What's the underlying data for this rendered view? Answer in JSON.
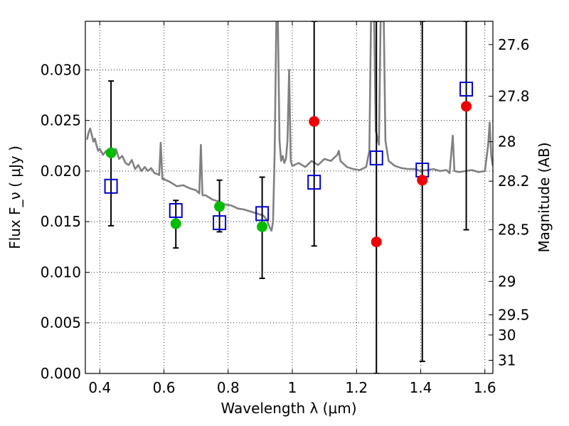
{
  "chart_data": {
    "type": "scatter",
    "title": "",
    "xlabel": "Wavelength  λ (μm)",
    "ylabel": "Flux  F_ν  ( μJy )",
    "y2label": "Magnitude (AB)",
    "xlim": [
      0.355,
      1.625
    ],
    "ylim": [
      0.0,
      0.0348
    ],
    "grid": true,
    "grid_style": "dotted",
    "x_ticks": [
      0.4,
      0.6,
      0.8,
      1.0,
      1.2,
      1.4,
      1.6
    ],
    "x_tick_labels": [
      "0.4",
      "0.6",
      "0.8",
      "1",
      "1.2",
      "1.4",
      "1.6"
    ],
    "y_ticks": [
      0.0,
      0.005,
      0.01,
      0.015,
      0.02,
      0.025,
      0.03
    ],
    "y_tick_labels": [
      "0.000",
      "0.005",
      "0.010",
      "0.015",
      "0.020",
      "0.025",
      "0.030"
    ],
    "y2_ticks": [
      {
        "label": "27.6",
        "flux": 0.0325
      },
      {
        "label": "27.8",
        "flux": 0.0274
      },
      {
        "label": "28",
        "flux": 0.0229
      },
      {
        "label": "28.2",
        "flux": 0.019
      },
      {
        "label": "28.5",
        "flux": 0.0142
      },
      {
        "label": "29",
        "flux": 0.0091
      },
      {
        "label": "29.5",
        "flux": 0.0058
      },
      {
        "label": "30",
        "flux": 0.0038
      },
      {
        "label": "31",
        "flux": 0.0013
      }
    ],
    "colors": {
      "spectrum": "#808080",
      "model": "#0000cc",
      "green": "#00bb00",
      "red": "#ee0000",
      "errorbar": "#000000"
    },
    "spectrum": [
      [
        0.36,
        0.0231
      ],
      [
        0.365,
        0.0238
      ],
      [
        0.37,
        0.0242
      ],
      [
        0.375,
        0.0236
      ],
      [
        0.38,
        0.0229
      ],
      [
        0.385,
        0.0232
      ],
      [
        0.39,
        0.0225
      ],
      [
        0.395,
        0.022
      ],
      [
        0.4,
        0.0222
      ],
      [
        0.41,
        0.0216
      ],
      [
        0.42,
        0.022
      ],
      [
        0.43,
        0.0214
      ],
      [
        0.44,
        0.0218
      ],
      [
        0.45,
        0.0222
      ],
      [
        0.46,
        0.0212
      ],
      [
        0.47,
        0.0215
      ],
      [
        0.48,
        0.0208
      ],
      [
        0.49,
        0.0206
      ],
      [
        0.5,
        0.0211
      ],
      [
        0.51,
        0.0202
      ],
      [
        0.52,
        0.0206
      ],
      [
        0.53,
        0.02
      ],
      [
        0.54,
        0.0204
      ],
      [
        0.55,
        0.02
      ],
      [
        0.56,
        0.0203
      ],
      [
        0.57,
        0.0198
      ],
      [
        0.58,
        0.0197
      ],
      [
        0.585,
        0.0196
      ],
      [
        0.59,
        0.0228
      ],
      [
        0.595,
        0.0192
      ],
      [
        0.6,
        0.0192
      ],
      [
        0.62,
        0.0189
      ],
      [
        0.64,
        0.0185
      ],
      [
        0.66,
        0.0186
      ],
      [
        0.68,
        0.0183
      ],
      [
        0.7,
        0.0181
      ],
      [
        0.71,
        0.0178
      ],
      [
        0.715,
        0.0226
      ],
      [
        0.72,
        0.0176
      ],
      [
        0.73,
        0.0176
      ],
      [
        0.75,
        0.0172
      ],
      [
        0.77,
        0.017
      ],
      [
        0.79,
        0.0167
      ],
      [
        0.81,
        0.0166
      ],
      [
        0.83,
        0.0163
      ],
      [
        0.85,
        0.0162
      ],
      [
        0.87,
        0.016
      ],
      [
        0.89,
        0.0158
      ],
      [
        0.91,
        0.0156
      ],
      [
        0.92,
        0.0152
      ],
      [
        0.93,
        0.0144
      ],
      [
        0.935,
        0.0141
      ],
      [
        0.94,
        0.015
      ],
      [
        0.945,
        0.022
      ],
      [
        0.95,
        0.0348
      ],
      [
        0.955,
        0.0348
      ],
      [
        0.96,
        0.023
      ],
      [
        0.965,
        0.021
      ],
      [
        0.97,
        0.0215
      ],
      [
        0.975,
        0.0208
      ],
      [
        0.98,
        0.0212
      ],
      [
        0.985,
        0.023
      ],
      [
        0.99,
        0.03
      ],
      [
        0.995,
        0.021
      ],
      [
        1.0,
        0.0205
      ],
      [
        1.02,
        0.0208
      ],
      [
        1.04,
        0.0204
      ],
      [
        1.06,
        0.021
      ],
      [
        1.08,
        0.0206
      ],
      [
        1.1,
        0.0212
      ],
      [
        1.12,
        0.021
      ],
      [
        1.14,
        0.0216
      ],
      [
        1.145,
        0.022
      ],
      [
        1.15,
        0.021
      ],
      [
        1.17,
        0.0204
      ],
      [
        1.19,
        0.0202
      ],
      [
        1.21,
        0.0201
      ],
      [
        1.23,
        0.0204
      ],
      [
        1.24,
        0.022
      ],
      [
        1.245,
        0.0348
      ],
      [
        1.255,
        0.0348
      ],
      [
        1.26,
        0.024
      ],
      [
        1.27,
        0.0226
      ],
      [
        1.275,
        0.0348
      ],
      [
        1.285,
        0.0348
      ],
      [
        1.29,
        0.023
      ],
      [
        1.3,
        0.021
      ],
      [
        1.32,
        0.0205
      ],
      [
        1.34,
        0.0203
      ],
      [
        1.36,
        0.0202
      ],
      [
        1.38,
        0.0202
      ],
      [
        1.4,
        0.02
      ],
      [
        1.42,
        0.0201
      ],
      [
        1.44,
        0.0202
      ],
      [
        1.46,
        0.02
      ],
      [
        1.48,
        0.0201
      ],
      [
        1.49,
        0.0198
      ],
      [
        1.5,
        0.0235
      ],
      [
        1.505,
        0.02
      ],
      [
        1.52,
        0.0199
      ],
      [
        1.54,
        0.02
      ],
      [
        1.56,
        0.0201
      ],
      [
        1.58,
        0.0199
      ],
      [
        1.6,
        0.02
      ],
      [
        1.61,
        0.0225
      ],
      [
        1.615,
        0.0248
      ],
      [
        1.62,
        0.0215
      ],
      [
        1.625,
        0.0205
      ]
    ],
    "series": [
      {
        "marker": "open-square",
        "color": "#0000cc",
        "points": [
          {
            "x": 0.435,
            "y": 0.0185
          },
          {
            "x": 0.637,
            "y": 0.0161
          },
          {
            "x": 0.773,
            "y": 0.0149
          },
          {
            "x": 0.906,
            "y": 0.0158
          },
          {
            "x": 1.068,
            "y": 0.0189
          },
          {
            "x": 1.262,
            "y": 0.0213
          },
          {
            "x": 1.405,
            "y": 0.0201
          },
          {
            "x": 1.542,
            "y": 0.0281
          }
        ]
      },
      {
        "marker": "filled-circle",
        "color": "#00bb00",
        "points": [
          {
            "x": 0.435,
            "y": 0.0218,
            "yerr": [
              0.0146,
              0.0289
            ]
          },
          {
            "x": 0.637,
            "y": 0.0148,
            "yerr": [
              0.0124,
              0.0171
            ]
          },
          {
            "x": 0.773,
            "y": 0.0165,
            "yerr": [
              0.014,
              0.0191
            ]
          },
          {
            "x": 0.906,
            "y": 0.0145,
            "yerr": [
              0.0094,
              0.0194
            ]
          }
        ]
      },
      {
        "marker": "filled-circle",
        "color": "#ee0000",
        "points": [
          {
            "x": 1.068,
            "y": 0.0249,
            "yerr": [
              0.0126,
              0.0348
            ]
          },
          {
            "x": 1.262,
            "y": 0.013,
            "yerr": [
              0.0,
              0.0348
            ]
          },
          {
            "x": 1.405,
            "y": 0.0191,
            "yerr": [
              0.0012,
              0.0348
            ]
          },
          {
            "x": 1.542,
            "y": 0.0264,
            "yerr": [
              0.0142,
              0.0348
            ]
          }
        ]
      }
    ]
  }
}
